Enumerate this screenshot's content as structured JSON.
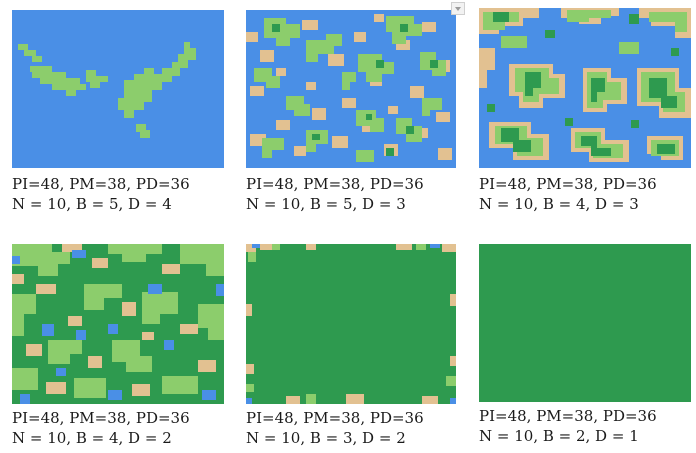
{
  "colors": {
    "water": "#4a8fe6",
    "sand": "#e2c191",
    "grass": "#8ccd6c",
    "forest": "#2e9a4f"
  },
  "tiles": [
    {
      "line1": "PI=48, PM=38, PD=36",
      "line2": "N = 10, B = 5, D = 4"
    },
    {
      "line1": "PI=48, PM=38, PD=36",
      "line2": "N = 10, B = 5, D = 3"
    },
    {
      "line1": "PI=48, PM=38, PD=36",
      "line2": "N = 10, B = 4, D = 3"
    },
    {
      "line1": "PI=48, PM=38, PD=36",
      "line2": "N = 10, B = 4, D = 2"
    },
    {
      "line1": "PI=48, PM=38, PD=36",
      "line2": "N = 10, B = 3, D = 2"
    },
    {
      "line1": "PI=48, PM=38, PD=36",
      "line2": "N = 10, B = 2, D = 1"
    }
  ],
  "badge_icon": "chevron-down-icon"
}
